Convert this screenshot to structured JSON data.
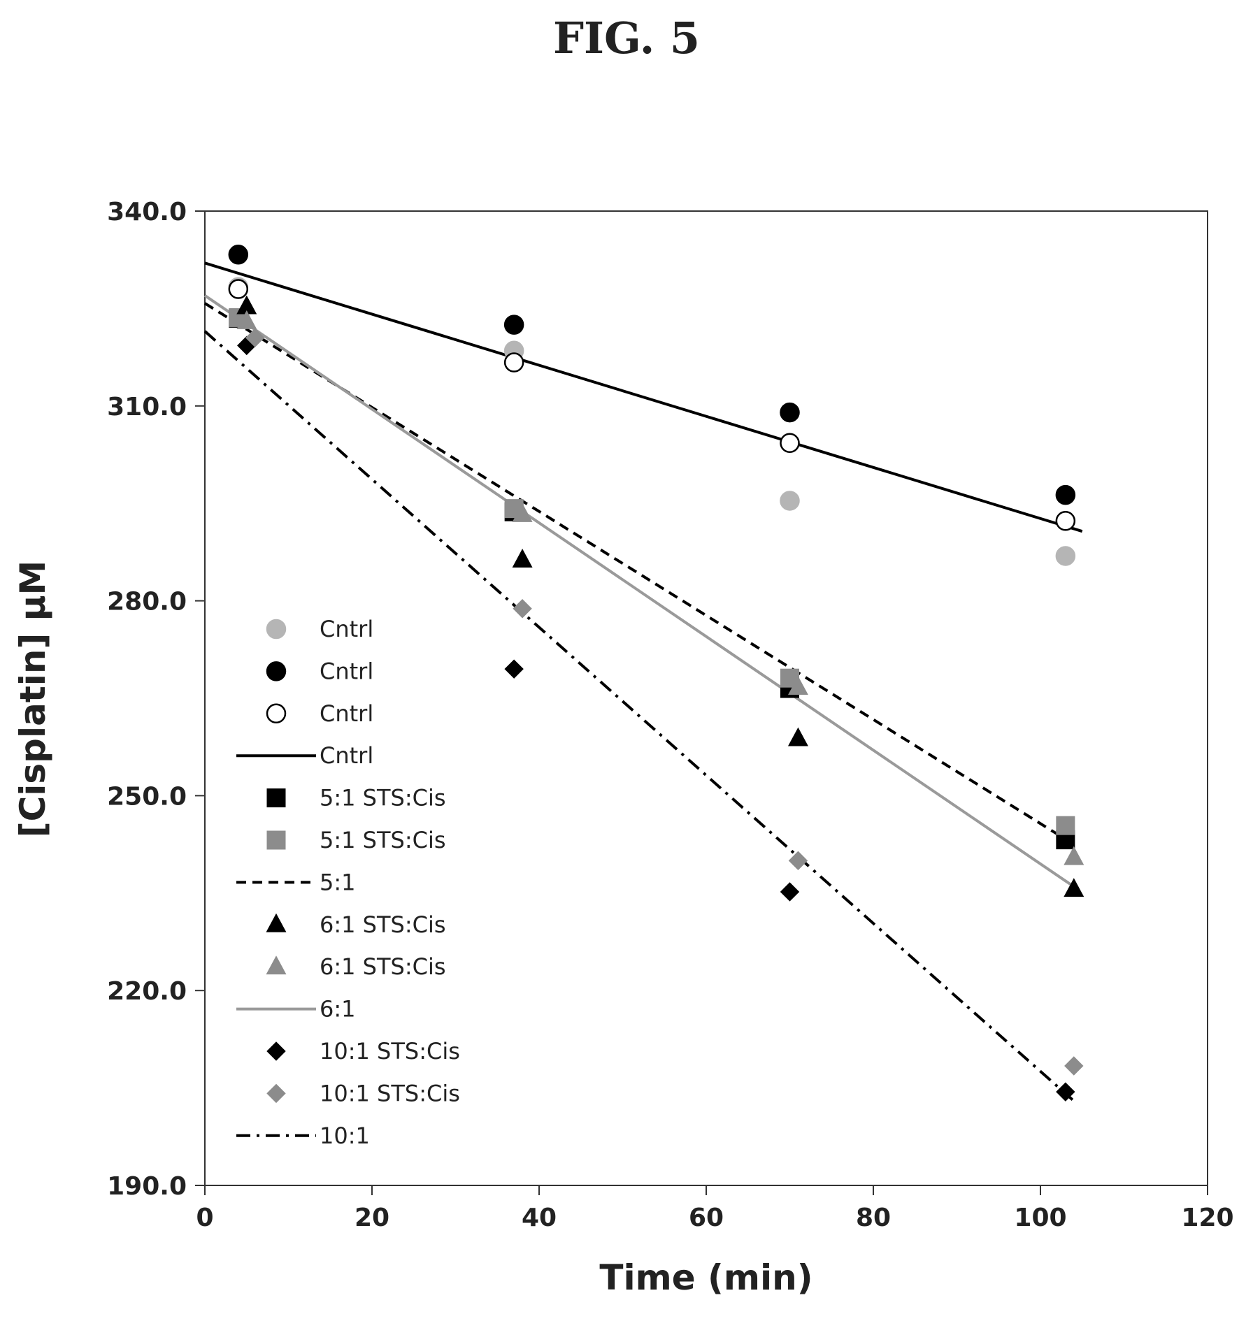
{
  "figure": {
    "title": "FIG. 5"
  },
  "chart_data": {
    "type": "scatter",
    "xlabel": "Time (min)",
    "ylabel": "[Cisplatin] μM",
    "xlim": [
      0,
      120
    ],
    "ylim": [
      190,
      340
    ],
    "x_ticks": [
      0,
      20,
      40,
      60,
      80,
      100,
      120
    ],
    "x_tick_labels": [
      "0",
      "20",
      "40",
      "60",
      "80",
      "100",
      "120"
    ],
    "y_ticks": [
      190,
      220,
      250,
      280,
      310,
      340
    ],
    "y_tick_labels": [
      "190.0",
      "220.0",
      "250.0",
      "280.0",
      "310.0",
      "340.0"
    ],
    "grid": false,
    "legend_position": "left inside plot area",
    "series": [
      {
        "name": "Cntrl",
        "kind": "marker",
        "marker": "circle",
        "fill": "#b5b5b5",
        "stroke": "#b5b5b5",
        "x": [
          4,
          37,
          70,
          103
        ],
        "y": [
          328.3,
          318.5,
          295.4,
          286.9
        ]
      },
      {
        "name": "Cntrl",
        "kind": "marker",
        "marker": "circle",
        "fill": "#000000",
        "stroke": "#000000",
        "x": [
          4,
          37,
          70,
          103
        ],
        "y": [
          333.3,
          322.5,
          309.0,
          296.3
        ]
      },
      {
        "name": "Cntrl",
        "kind": "marker",
        "marker": "circle",
        "fill": "#ffffff",
        "stroke": "#000000",
        "x": [
          4,
          37,
          70,
          103
        ],
        "y": [
          328.0,
          316.7,
          304.3,
          292.3
        ]
      },
      {
        "name": "Cntrl",
        "kind": "line",
        "color": "#000000",
        "dash": "",
        "width": 4,
        "x": [
          0,
          105
        ],
        "y": [
          332.0,
          290.7
        ]
      },
      {
        "name": "5:1 STS:Cis",
        "kind": "marker",
        "marker": "square",
        "fill": "#000000",
        "stroke": "#000000",
        "x": [
          4,
          37,
          70,
          103
        ],
        "y": [
          323.5,
          293.7,
          266.5,
          243.2
        ]
      },
      {
        "name": "5:1 STS:Cis",
        "kind": "marker",
        "marker": "square",
        "fill": "#8c8c8c",
        "stroke": "#8c8c8c",
        "x": [
          4,
          37,
          70,
          103
        ],
        "y": [
          323.6,
          294.2,
          268.1,
          245.4
        ]
      },
      {
        "name": "5:1",
        "kind": "line",
        "color": "#000000",
        "dash": "14,9",
        "width": 4,
        "x": [
          0,
          104
        ],
        "y": [
          325.8,
          242.5
        ]
      },
      {
        "name": "6:1 STS:Cis",
        "kind": "marker",
        "marker": "triangle",
        "fill": "#000000",
        "stroke": "#000000",
        "x": [
          5,
          38,
          71,
          104
        ],
        "y": [
          325.3,
          286.3,
          258.8,
          235.6
        ]
      },
      {
        "name": "6:1 STS:Cis",
        "kind": "marker",
        "marker": "triangle",
        "fill": "#8c8c8c",
        "stroke": "#8c8c8c",
        "x": [
          5,
          38,
          71,
          104
        ],
        "y": [
          323.0,
          293.3,
          266.7,
          240.5
        ]
      },
      {
        "name": "6:1",
        "kind": "line",
        "color": "#9a9a9a",
        "dash": "",
        "width": 4,
        "x": [
          0,
          104
        ],
        "y": [
          327.0,
          236.0
        ]
      },
      {
        "name": "10:1 STS:Cis",
        "kind": "marker",
        "marker": "diamond",
        "fill": "#000000",
        "stroke": "#000000",
        "x": [
          5,
          37,
          70,
          103
        ],
        "y": [
          319.3,
          269.5,
          235.2,
          204.4
        ]
      },
      {
        "name": "10:1 STS:Cis",
        "kind": "marker",
        "marker": "diamond",
        "fill": "#8c8c8c",
        "stroke": "#8c8c8c",
        "x": [
          6,
          38,
          71,
          104
        ],
        "y": [
          320.5,
          278.8,
          240.0,
          208.4
        ]
      },
      {
        "name": "10:1",
        "kind": "line",
        "color": "#000000",
        "dash": "20,9,4,9",
        "width": 4,
        "x": [
          0,
          104
        ],
        "y": [
          321.5,
          203.0
        ]
      }
    ]
  }
}
